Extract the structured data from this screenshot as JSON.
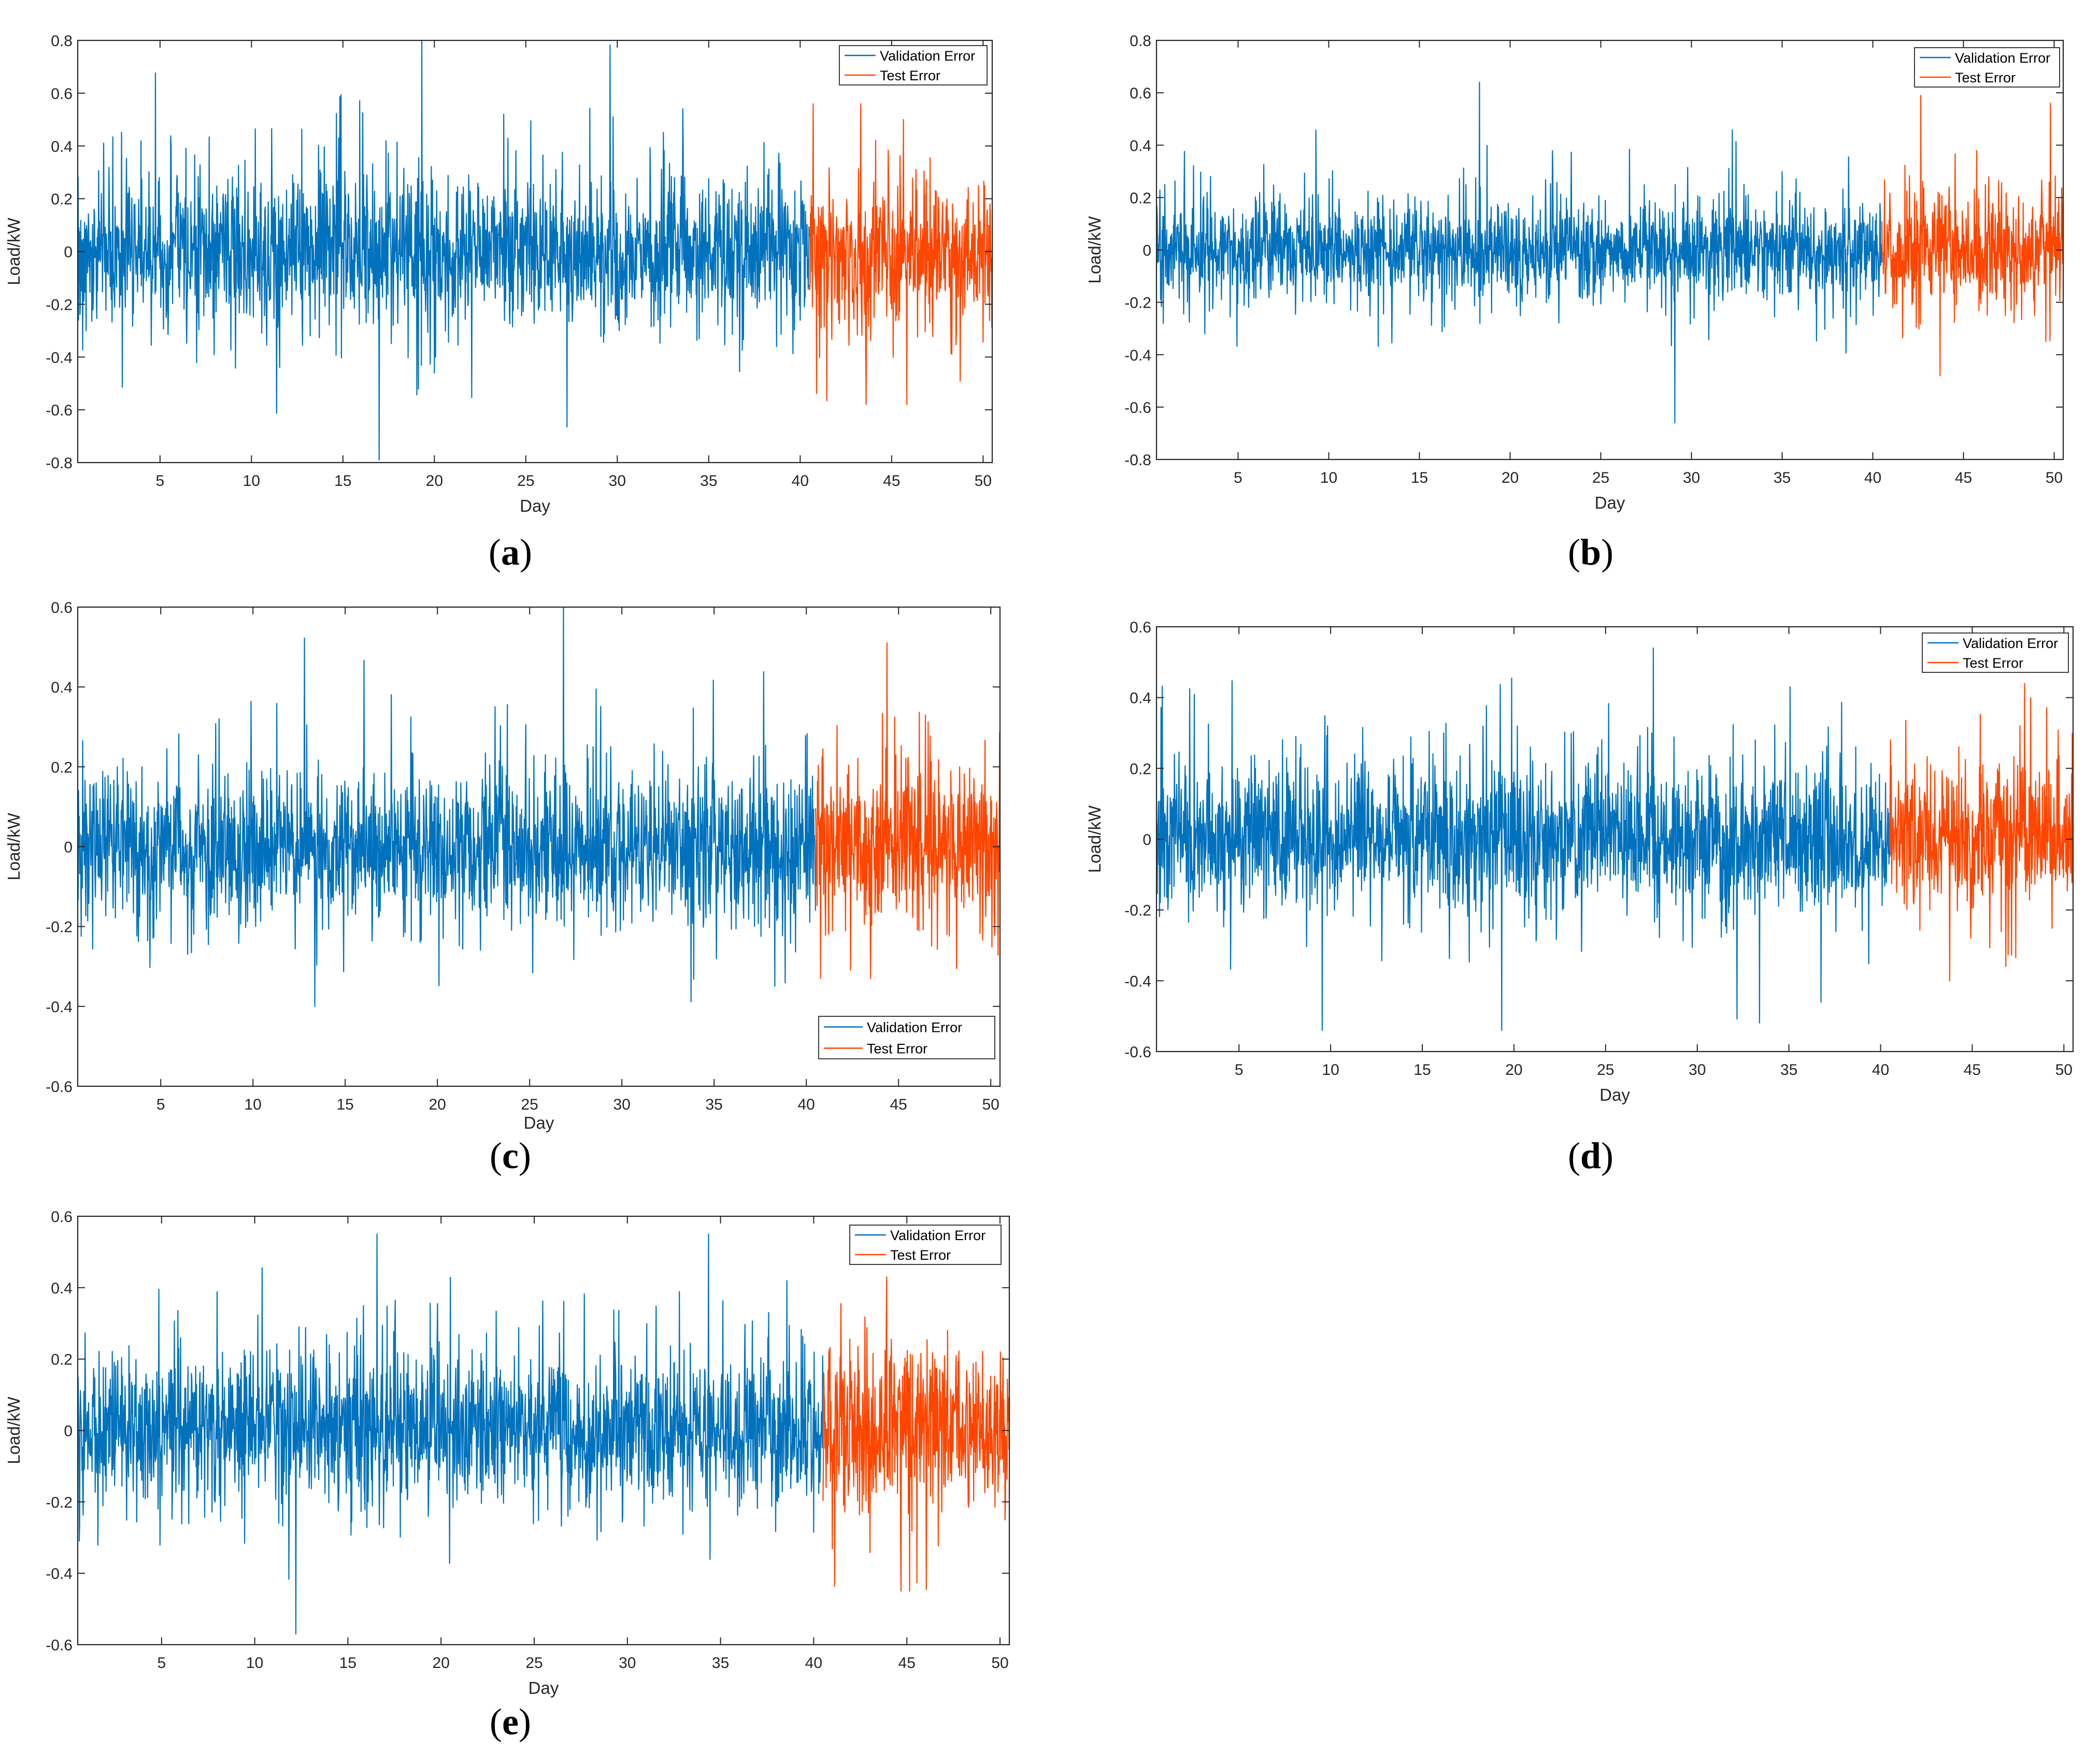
{
  "chart_data": [
    {
      "panel": "(a)",
      "type": "line",
      "xlabel": "Day",
      "ylabel": "Load/kW",
      "xlim": [
        0.5,
        50.5
      ],
      "ylim": [
        -0.8,
        0.8
      ],
      "xticks": [
        5,
        10,
        15,
        20,
        25,
        30,
        35,
        40,
        45,
        50
      ],
      "yticks": [
        -0.8,
        -0.6,
        -0.4,
        -0.2,
        0,
        0.2,
        0.4,
        0.6,
        0.8
      ],
      "legend": {
        "position": "top-right",
        "style": "small"
      },
      "series": [
        {
          "name": "Validation Error",
          "color": "#0072BD",
          "x_range": [
            0.5,
            40.5
          ],
          "typical_amplitude": 0.18,
          "min": -0.79,
          "max": 0.8
        },
        {
          "name": "Test Error",
          "color": "#FF4500",
          "x_range": [
            40.5,
            50.5
          ],
          "typical_amplitude": 0.18,
          "min": -0.58,
          "max": 0.56
        }
      ]
    },
    {
      "panel": "(b)",
      "type": "line",
      "xlabel": "Day",
      "ylabel": "Load/kW",
      "xlim": [
        0.5,
        50.5
      ],
      "ylim": [
        -0.8,
        0.8
      ],
      "xticks": [
        5,
        10,
        15,
        20,
        25,
        30,
        35,
        40,
        45,
        50
      ],
      "yticks": [
        -0.8,
        -0.6,
        -0.4,
        -0.2,
        0,
        0.2,
        0.4,
        0.6,
        0.8
      ],
      "legend": {
        "position": "top-right",
        "style": "small"
      },
      "series": [
        {
          "name": "Validation Error",
          "color": "#0072BD",
          "x_range": [
            0.5,
            40.5
          ],
          "typical_amplitude": 0.12,
          "min": -0.66,
          "max": 0.64
        },
        {
          "name": "Test Error",
          "color": "#FF4500",
          "x_range": [
            40.5,
            50.5
          ],
          "typical_amplitude": 0.14,
          "min": -0.48,
          "max": 0.59
        }
      ]
    },
    {
      "panel": "(c)",
      "type": "line",
      "xlabel": "Day",
      "ylabel": "Load/kW",
      "xlim": [
        0.5,
        50.5
      ],
      "ylim": [
        -0.6,
        0.6
      ],
      "xticks": [
        5,
        10,
        15,
        20,
        25,
        30,
        35,
        40,
        45,
        50
      ],
      "yticks": [
        -0.6,
        -0.4,
        -0.2,
        0,
        0.2,
        0.4,
        0.6
      ],
      "legend": {
        "position": "bottom-right",
        "style": "large"
      },
      "series": [
        {
          "name": "Validation Error",
          "color": "#0072BD",
          "x_range": [
            0.5,
            40.5
          ],
          "typical_amplitude": 0.12,
          "min": -0.4,
          "max": 0.6
        },
        {
          "name": "Test Error",
          "color": "#FF4500",
          "x_range": [
            40.5,
            50.5
          ],
          "typical_amplitude": 0.13,
          "min": -0.33,
          "max": 0.51
        }
      ]
    },
    {
      "panel": "(d)",
      "type": "line",
      "xlabel": "Day",
      "ylabel": "Load/kW",
      "xlim": [
        0.5,
        50.5
      ],
      "ylim": [
        -0.6,
        0.6
      ],
      "xticks": [
        5,
        10,
        15,
        20,
        25,
        30,
        35,
        40,
        45,
        50
      ],
      "yticks": [
        -0.6,
        -0.4,
        -0.2,
        0,
        0.2,
        0.4,
        0.6
      ],
      "legend": {
        "position": "top-right",
        "style": "small"
      },
      "series": [
        {
          "name": "Validation Error",
          "color": "#0072BD",
          "x_range": [
            0.5,
            40.5
          ],
          "typical_amplitude": 0.14,
          "min": -0.54,
          "max": 0.54
        },
        {
          "name": "Test Error",
          "color": "#FF4500",
          "x_range": [
            40.5,
            50.5
          ],
          "typical_amplitude": 0.13,
          "min": -0.4,
          "max": 0.44
        }
      ]
    },
    {
      "panel": "(e)",
      "type": "line",
      "xlabel": "Day",
      "ylabel": "Load/kW",
      "xlim": [
        0.5,
        50.5
      ],
      "ylim": [
        -0.6,
        0.6
      ],
      "xticks": [
        5,
        10,
        15,
        20,
        25,
        30,
        35,
        40,
        45,
        50
      ],
      "yticks": [
        -0.6,
        -0.4,
        -0.2,
        0,
        0.2,
        0.4,
        0.6
      ],
      "legend": {
        "position": "top-right",
        "style": "small"
      },
      "series": [
        {
          "name": "Validation Error",
          "color": "#0072BD",
          "x_range": [
            0.5,
            40.5
          ],
          "typical_amplitude": 0.13,
          "min": -0.57,
          "max": 0.55
        },
        {
          "name": "Test Error",
          "color": "#FF4500",
          "x_range": [
            40.5,
            50.5
          ],
          "typical_amplitude": 0.15,
          "min": -0.45,
          "max": 0.43
        }
      ]
    }
  ]
}
